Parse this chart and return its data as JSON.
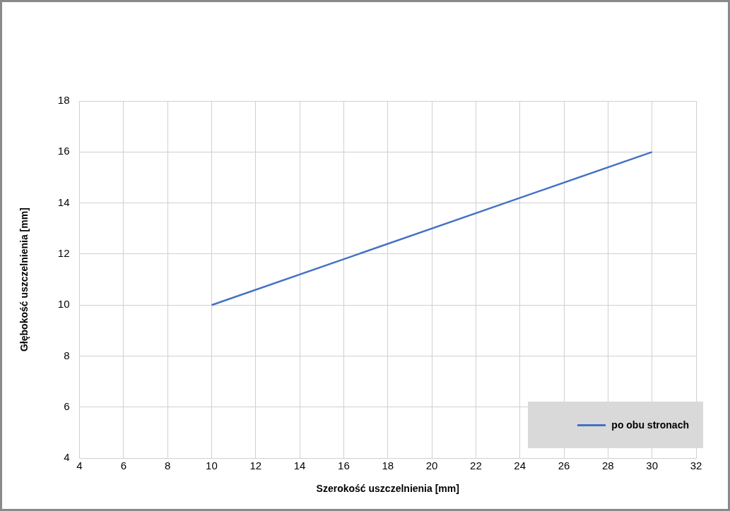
{
  "chart_data": {
    "type": "line",
    "xlabel": "Szerokość uszczelnienia [mm]",
    "ylabel": "Głębokość uszczelnienia [mm]",
    "x": [
      10,
      30
    ],
    "series": [
      {
        "name": "po obu stronach",
        "color": "#4472c4",
        "values": [
          10,
          16
        ]
      }
    ],
    "xlim": [
      4,
      32
    ],
    "xticks": [
      4,
      6,
      8,
      10,
      12,
      14,
      16,
      18,
      20,
      22,
      24,
      26,
      28,
      30,
      32
    ],
    "ylim": [
      4,
      18
    ],
    "yticks": [
      4,
      6,
      8,
      10,
      12,
      14,
      16,
      18
    ],
    "grid": true,
    "legend": "bottom right",
    "marker": "none",
    "line_style": "solid"
  }
}
